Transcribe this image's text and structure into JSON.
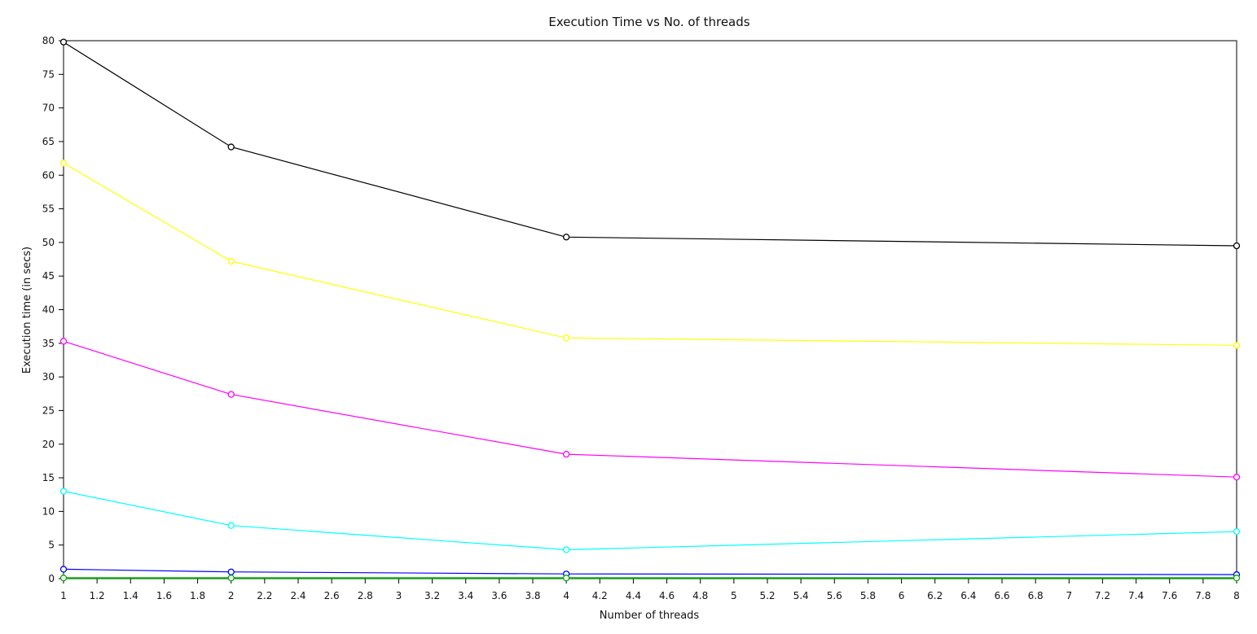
{
  "chart_data": {
    "type": "line",
    "title": "Execution Time vs No. of threads",
    "xlabel": "Number of threads",
    "ylabel": "Execution time (in secs)",
    "xlim": [
      1,
      8
    ],
    "ylim": [
      0,
      80
    ],
    "x_ticks": [
      "1",
      "1.2",
      "1.4",
      "1.6",
      "1.8",
      "2",
      "2.2",
      "2.4",
      "2.6",
      "2.8",
      "3",
      "3.2",
      "3.4",
      "3.6",
      "3.8",
      "4",
      "4.2",
      "4.4",
      "4.6",
      "4.8",
      "5",
      "5.2",
      "5.4",
      "5.6",
      "5.8",
      "6",
      "6.2",
      "6.4",
      "6.6",
      "6.8",
      "7",
      "7.2",
      "7.4",
      "7.6",
      "7.8",
      "8"
    ],
    "y_ticks": [
      "0",
      "5",
      "10",
      "15",
      "20",
      "25",
      "30",
      "35",
      "40",
      "45",
      "50",
      "55",
      "60",
      "65",
      "70",
      "75",
      "80"
    ],
    "grid": false,
    "legend": "none",
    "x": [
      1,
      2,
      4,
      8
    ],
    "series": [
      {
        "color": "#000000",
        "values": [
          79.8,
          64.2,
          50.8,
          49.5
        ]
      },
      {
        "color": "#ffff00",
        "values": [
          61.8,
          47.2,
          35.8,
          34.7
        ]
      },
      {
        "color": "#ff00ff",
        "values": [
          35.3,
          27.4,
          18.5,
          15.1
        ]
      },
      {
        "color": "#00ffff",
        "values": [
          13.0,
          7.9,
          4.3,
          7.0
        ]
      },
      {
        "color": "#0000ff",
        "values": [
          1.4,
          1.0,
          0.7,
          0.6
        ]
      },
      {
        "color": "#00aa00",
        "values": [
          0.1,
          0.1,
          0.1,
          0.1
        ]
      }
    ]
  }
}
